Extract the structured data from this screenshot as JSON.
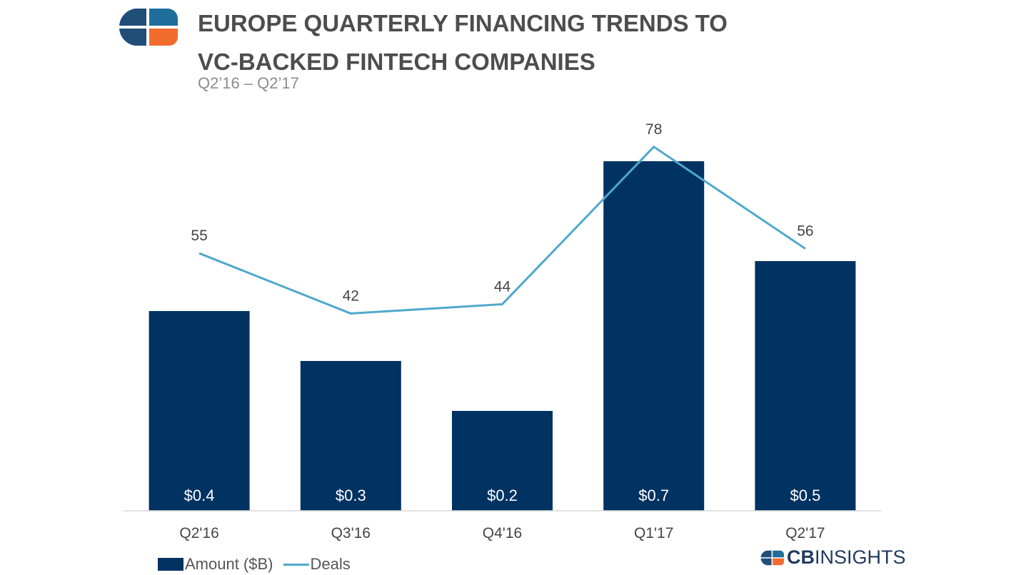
{
  "header": {
    "title": "EUROPE QUARTERLY FINANCING TRENDS TO VC-BACKED FINTECH COMPANIES",
    "subtitle": "Q2’16 – Q2’17",
    "logo_icon": "cb-insights-logo-icon"
  },
  "colors": {
    "bar": "#003262",
    "line": "#4fa8cc",
    "axis": "#d9d9d9",
    "logo_blue": "#1f4e79",
    "logo_orange": "#f26c2e"
  },
  "chart_data": {
    "type": "bar",
    "categories": [
      "Q2'16",
      "Q3'16",
      "Q4'16",
      "Q1'17",
      "Q2'17"
    ],
    "series": [
      {
        "name": "Amount ($B)",
        "type": "bar",
        "values": [
          0.4,
          0.3,
          0.2,
          0.7,
          0.5
        ],
        "labels": [
          "$0.4",
          "$0.3",
          "$0.2",
          "$0.7",
          "$0.5"
        ]
      },
      {
        "name": "Deals",
        "type": "line",
        "values": [
          55,
          42,
          44,
          78,
          56
        ],
        "labels": [
          "55",
          "42",
          "44",
          "78",
          "56"
        ]
      }
    ],
    "legend_position": "bottom-left",
    "grid": false
  },
  "legend": {
    "bar_label": "Amount ($B)",
    "line_label": "Deals"
  },
  "brand": {
    "bold": "CB",
    "regular": "INSIGHTS",
    "icon": "cb-insights-logo-icon"
  }
}
